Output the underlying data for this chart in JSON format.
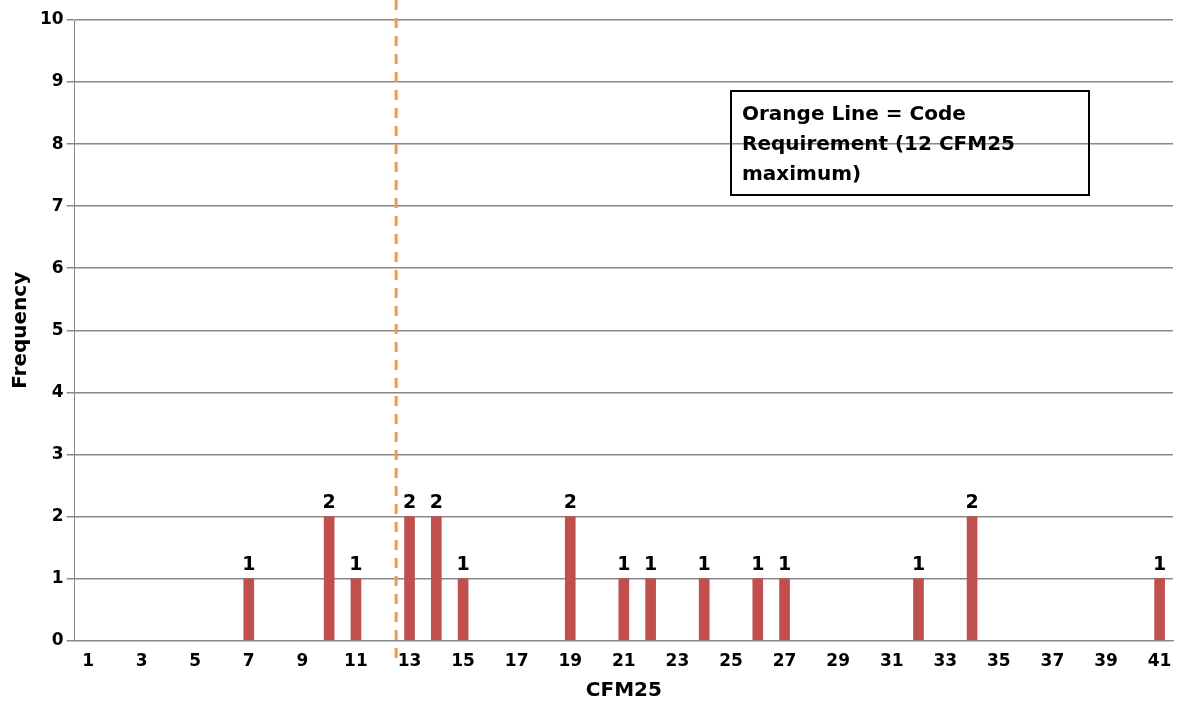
{
  "chart_data": {
    "type": "bar",
    "xlabel": "CFM25",
    "ylabel": "Frequency",
    "x": [
      7,
      10,
      11,
      13,
      14,
      15,
      19,
      21,
      22,
      24,
      26,
      27,
      32,
      34,
      41
    ],
    "values": [
      1,
      2,
      1,
      2,
      2,
      1,
      2,
      1,
      1,
      1,
      1,
      1,
      1,
      2,
      1
    ],
    "color": "#c0504d",
    "xlim": [
      0.5,
      41.5
    ],
    "xticks": [
      1,
      3,
      5,
      7,
      9,
      11,
      13,
      15,
      17,
      19,
      21,
      23,
      25,
      27,
      29,
      31,
      33,
      35,
      37,
      39,
      41
    ],
    "ylim": [
      0,
      10
    ],
    "yticks": [
      0,
      1,
      2,
      3,
      4,
      5,
      6,
      7,
      8,
      9,
      10
    ],
    "grid": "y",
    "legend": false,
    "data_labels": true,
    "ref_lines": [
      {
        "axis": "x",
        "value": 12.5,
        "color": "#f79646",
        "line_style": "dashed"
      }
    ],
    "annotations": [
      "Orange Line = Code Requirement (12 CFM25 maximum)"
    ]
  }
}
